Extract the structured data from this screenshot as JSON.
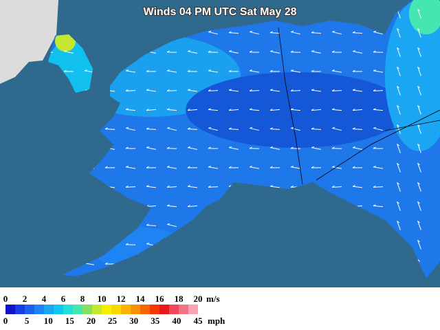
{
  "map": {
    "title": "Winds 04 PM UTC Sat May 28",
    "legend": {
      "ms_labels": [
        0,
        2,
        4,
        6,
        8,
        10,
        12,
        14,
        16,
        18,
        20
      ],
      "ms_unit": "m/s",
      "mph_labels": [
        0,
        5,
        10,
        15,
        20,
        25,
        30,
        35,
        40,
        45
      ],
      "mph_unit": "mph",
      "colors": [
        "#1212c8",
        "#1a3ce6",
        "#1e60f0",
        "#1e84f4",
        "#1aa6f2",
        "#12c6f0",
        "#22dede",
        "#46e6b0",
        "#86e060",
        "#c4e830",
        "#f2f000",
        "#f8d800",
        "#f8b400",
        "#f89000",
        "#f86400",
        "#f03800",
        "#e81818",
        "#f04858",
        "#f27484",
        "#f8a4b4"
      ]
    }
  }
}
